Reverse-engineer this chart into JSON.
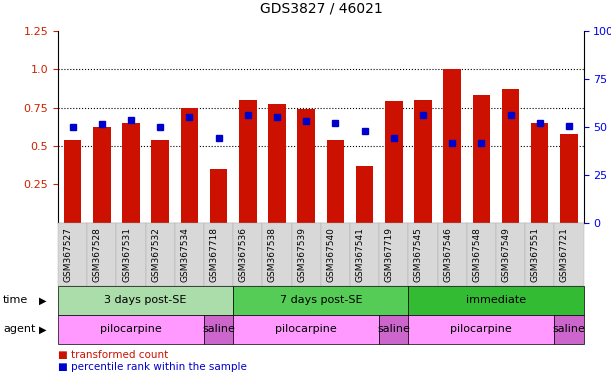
{
  "title": "GDS3827 / 46021",
  "samples": [
    "GSM367527",
    "GSM367528",
    "GSM367531",
    "GSM367532",
    "GSM367534",
    "GSM367718",
    "GSM367536",
    "GSM367538",
    "GSM367539",
    "GSM367540",
    "GSM367541",
    "GSM367719",
    "GSM367545",
    "GSM367546",
    "GSM367548",
    "GSM367549",
    "GSM367551",
    "GSM367721"
  ],
  "red_values": [
    0.54,
    0.62,
    0.65,
    0.54,
    0.75,
    0.35,
    0.8,
    0.77,
    0.74,
    0.54,
    0.37,
    0.79,
    0.8,
    1.0,
    0.83,
    0.87,
    0.65,
    0.58
  ],
  "blue_values": [
    0.62,
    0.64,
    0.67,
    0.62,
    0.69,
    0.55,
    0.7,
    0.69,
    0.66,
    0.65,
    0.6,
    0.55,
    0.7,
    0.52,
    0.52,
    0.7,
    0.65,
    0.63
  ],
  "ylim_left": [
    0.0,
    1.25
  ],
  "ylim_right": [
    0,
    100
  ],
  "yticks_left": [
    0.25,
    0.5,
    0.75,
    1.0,
    1.25
  ],
  "yticks_right": [
    0,
    25,
    50,
    75,
    100
  ],
  "hlines": [
    0.5,
    0.75,
    1.0
  ],
  "time_groups": [
    {
      "label": "3 days post-SE",
      "start": 0,
      "end": 5,
      "color": "#AADDAA"
    },
    {
      "label": "7 days post-SE",
      "start": 6,
      "end": 11,
      "color": "#55CC55"
    },
    {
      "label": "immediate",
      "start": 12,
      "end": 17,
      "color": "#33BB33"
    }
  ],
  "agent_groups": [
    {
      "label": "pilocarpine",
      "start": 0,
      "end": 4,
      "color": "#FF99FF"
    },
    {
      "label": "saline",
      "start": 5,
      "end": 5,
      "color": "#CC66CC"
    },
    {
      "label": "pilocarpine",
      "start": 6,
      "end": 10,
      "color": "#FF99FF"
    },
    {
      "label": "saline",
      "start": 11,
      "end": 11,
      "color": "#CC66CC"
    },
    {
      "label": "pilocarpine",
      "start": 12,
      "end": 16,
      "color": "#FF99FF"
    },
    {
      "label": "saline",
      "start": 17,
      "end": 17,
      "color": "#CC66CC"
    }
  ],
  "bar_color": "#CC1100",
  "dot_color": "#0000CC",
  "bar_width": 0.6,
  "left_label_color": "#CC2200",
  "right_label_color": "#0000EE",
  "xtick_bg_color": "#D8D8D8",
  "legend_items": [
    {
      "color": "#CC1100",
      "label": "transformed count"
    },
    {
      "color": "#0000CC",
      "label": "percentile rank within the sample"
    }
  ],
  "time_label": "time",
  "agent_label": "agent"
}
